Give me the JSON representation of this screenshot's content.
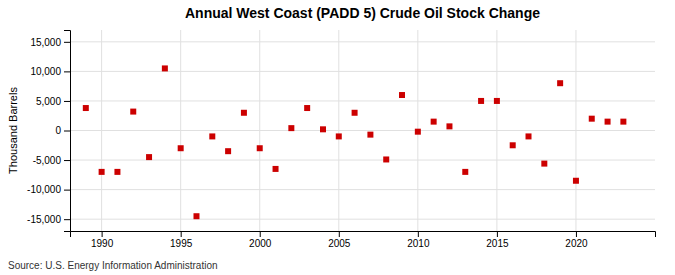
{
  "chart_data": {
    "type": "scatter",
    "title": "Annual West Coast (PADD 5) Crude Oil Stock Change",
    "ylabel": "Thousand Barrels",
    "source": "Source: U.S. Energy Information Administration",
    "x": [
      1989,
      1990,
      1991,
      1992,
      1993,
      1994,
      1995,
      1996,
      1997,
      1998,
      1999,
      2000,
      2001,
      2002,
      2003,
      2004,
      2005,
      2006,
      2007,
      2008,
      2009,
      2010,
      2011,
      2012,
      2013,
      2014,
      2015,
      2016,
      2017,
      2018,
      2019,
      2020,
      2021,
      2022,
      2023
    ],
    "values": [
      3800,
      -7000,
      -7000,
      3200,
      -4500,
      10500,
      -3000,
      -14500,
      -1000,
      -3500,
      3000,
      -3000,
      -6500,
      400,
      3800,
      200,
      -1000,
      3000,
      -700,
      -4900,
      6000,
      -200,
      1500,
      700,
      -7000,
      5000,
      5000,
      -2500,
      -1000,
      -5600,
      8000,
      -8500,
      2000,
      1500,
      1500
    ],
    "color": "#cc0000",
    "marker": "square",
    "xlim": [
      1988.0,
      2025.0
    ],
    "xticks": [
      1990,
      1995,
      2000,
      2005,
      2010,
      2015,
      2020
    ],
    "ylim": [
      -17000,
      17000
    ],
    "yticks": [
      {
        "value": -15000,
        "label": "-15,000"
      },
      {
        "value": -10000,
        "label": "-10,000"
      },
      {
        "value": -5000,
        "label": "-5,000"
      },
      0,
      {
        "value": 5000,
        "label": "5,000"
      },
      {
        "value": 10000,
        "label": "10,000"
      },
      {
        "value": 15000,
        "label": "15,000"
      }
    ],
    "grid": true
  }
}
